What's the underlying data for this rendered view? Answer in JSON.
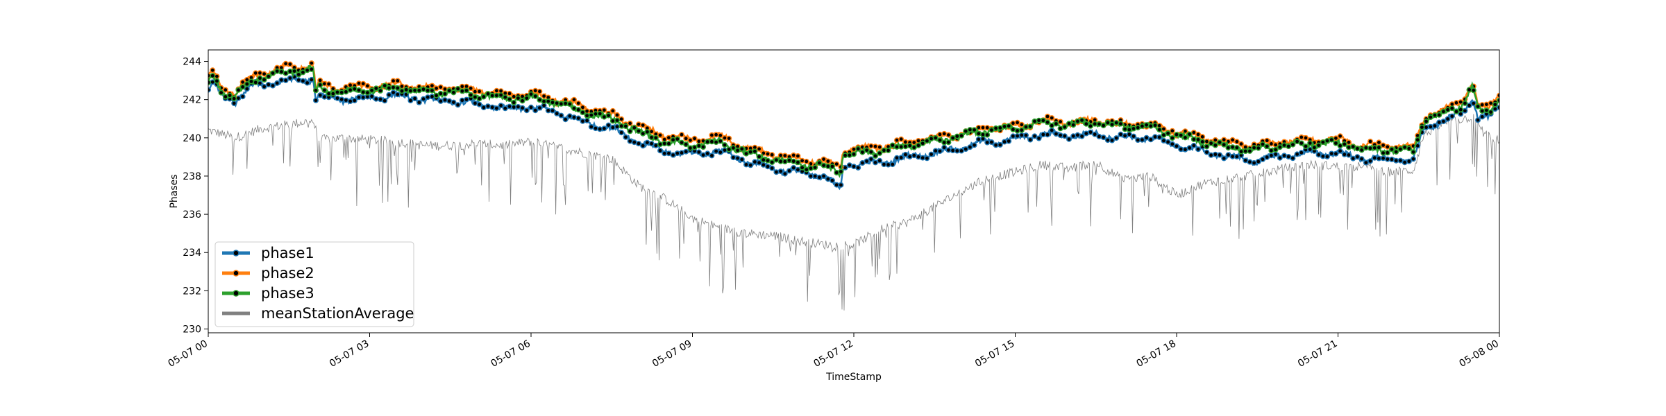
{
  "chart_data": {
    "type": "line",
    "title": "",
    "xlabel": "TimeStamp",
    "ylabel": "Phases",
    "xlim": [
      "2019-05-07 00:00",
      "2019-05-08 00:00"
    ],
    "ylim": [
      229.8,
      244.6
    ],
    "x_tick_labels": [
      "05-07 00",
      "05-07 03",
      "05-07 06",
      "05-07 09",
      "05-07 12",
      "05-07 15",
      "05-07 18",
      "05-07 21",
      "05-08 00"
    ],
    "x_tick_hours": [
      0,
      3,
      6,
      9,
      12,
      15,
      18,
      21,
      24
    ],
    "y_ticks": [
      230,
      232,
      234,
      236,
      238,
      240,
      242,
      244
    ],
    "grid": false,
    "legend_position": "lower-left",
    "legend": [
      "phase1",
      "phase2",
      "phase3",
      "meanStationAverage"
    ],
    "series": [
      {
        "name": "phase1",
        "color": "#1f77b4",
        "marker": "circle-black",
        "x_hours": [
          0,
          0.1,
          0.25,
          0.5,
          0.75,
          1,
          1.3,
          1.6,
          1.95,
          2.0,
          2.05,
          2.5,
          3,
          3.5,
          4,
          4.5,
          5,
          5.5,
          6,
          6.5,
          7,
          7.5,
          8,
          8.5,
          9,
          9.5,
          10,
          10.5,
          11,
          11.5,
          11.75,
          11.8,
          12,
          12.5,
          13,
          13.5,
          14,
          14.5,
          15,
          15.5,
          16,
          16.5,
          17,
          17.5,
          18,
          18.5,
          19,
          19.5,
          20,
          20.5,
          21,
          21.5,
          22,
          22.4,
          22.6,
          23,
          23.3,
          23.5,
          23.6,
          23.8,
          24
        ],
        "values": [
          242.5,
          242.9,
          242.2,
          241.9,
          242.6,
          242.8,
          242.9,
          243.0,
          243.1,
          241.9,
          242.2,
          242.0,
          242.1,
          242.2,
          242.0,
          241.9,
          241.8,
          241.5,
          241.6,
          241.3,
          240.8,
          240.5,
          239.8,
          239.3,
          239.1,
          239.3,
          238.8,
          238.4,
          238.2,
          237.9,
          237.3,
          238.5,
          238.6,
          238.7,
          239.0,
          239.2,
          239.5,
          239.8,
          239.9,
          240.2,
          240.1,
          240.2,
          240.0,
          240.0,
          239.6,
          239.3,
          239.0,
          238.8,
          239.1,
          239.2,
          239.2,
          238.9,
          238.9,
          238.8,
          240.5,
          240.9,
          241.3,
          242.2,
          241.1,
          241.0,
          241.6
        ]
      },
      {
        "name": "phase2",
        "color": "#ff7f0e",
        "marker": "circle-black",
        "x_hours": [
          0,
          0.1,
          0.25,
          0.5,
          0.75,
          1,
          1.3,
          1.6,
          1.95,
          2.0,
          2.05,
          2.5,
          3,
          3.5,
          4,
          4.5,
          5,
          5.5,
          6,
          6.5,
          7,
          7.5,
          8,
          8.5,
          9,
          9.5,
          10,
          10.5,
          11,
          11.5,
          11.75,
          11.8,
          12,
          12.5,
          13,
          13.5,
          14,
          14.5,
          15,
          15.5,
          16,
          16.5,
          17,
          17.5,
          18,
          18.5,
          19,
          19.5,
          20,
          20.5,
          21,
          21.5,
          22,
          22.4,
          22.6,
          23,
          23.3,
          23.5,
          23.6,
          23.8,
          24
        ],
        "values": [
          243.1,
          243.4,
          242.7,
          242.3,
          243.1,
          243.4,
          243.6,
          243.7,
          243.8,
          242.5,
          242.8,
          242.6,
          242.7,
          242.8,
          242.6,
          242.6,
          242.5,
          242.2,
          242.3,
          242.0,
          241.6,
          241.2,
          240.6,
          240.1,
          239.9,
          240.1,
          239.5,
          239.1,
          238.9,
          238.7,
          238.4,
          239.4,
          239.4,
          239.5,
          239.8,
          240.0,
          240.2,
          240.5,
          240.6,
          240.9,
          240.8,
          240.9,
          240.7,
          240.7,
          240.3,
          240.0,
          239.7,
          239.6,
          239.8,
          239.9,
          239.9,
          239.6,
          239.6,
          239.5,
          241.1,
          241.5,
          241.9,
          242.9,
          241.7,
          241.5,
          242.3
        ]
      },
      {
        "name": "phase3",
        "color": "#2ca02c",
        "marker": "circle-black",
        "x_hours": [
          0,
          0.1,
          0.25,
          0.5,
          0.75,
          1,
          1.3,
          1.6,
          1.95,
          2.0,
          2.05,
          2.5,
          3,
          3.5,
          4,
          4.5,
          5,
          5.5,
          6,
          6.5,
          7,
          7.5,
          8,
          8.5,
          9,
          9.5,
          10,
          10.5,
          11,
          11.5,
          11.75,
          11.8,
          12,
          12.5,
          13,
          13.5,
          14,
          14.5,
          15,
          15.5,
          16,
          16.5,
          17,
          17.5,
          18,
          18.5,
          19,
          19.5,
          20,
          20.5,
          21,
          21.5,
          22,
          22.4,
          22.6,
          23,
          23.3,
          23.5,
          23.6,
          23.8,
          24
        ],
        "values": [
          242.9,
          243.2,
          242.5,
          242.1,
          242.9,
          243.2,
          243.3,
          243.5,
          243.6,
          242.3,
          242.6,
          242.4,
          242.5,
          242.6,
          242.4,
          242.4,
          242.3,
          242.0,
          242.1,
          241.8,
          241.3,
          241.0,
          240.3,
          239.8,
          239.6,
          239.8,
          239.2,
          238.9,
          238.6,
          238.5,
          238.2,
          239.2,
          239.2,
          239.3,
          239.6,
          239.8,
          240.1,
          240.4,
          240.5,
          240.8,
          240.7,
          240.8,
          240.6,
          240.6,
          240.1,
          239.8,
          239.5,
          239.4,
          239.6,
          239.7,
          239.7,
          239.4,
          239.4,
          239.3,
          240.9,
          241.3,
          241.7,
          242.7,
          241.5,
          241.3,
          242.1
        ]
      },
      {
        "name": "meanStationAverage",
        "color": "#808080",
        "marker": "none",
        "x_hours": [
          0,
          0.5,
          1,
          1.5,
          1.95,
          2.05,
          2.5,
          3,
          3.5,
          4,
          4.5,
          5,
          5.5,
          6,
          6.5,
          7,
          7.5,
          8,
          8.5,
          9,
          9.5,
          10,
          10.5,
          11,
          11.5,
          12,
          12.5,
          13,
          13.5,
          14,
          14.5,
          15,
          15.5,
          16,
          16.5,
          17,
          17.5,
          18,
          18.5,
          19,
          19.5,
          20,
          20.5,
          21,
          21.5,
          22,
          22.4,
          22.6,
          23,
          23.5,
          23.7,
          24
        ],
        "values": [
          240.4,
          240.0,
          240.5,
          240.7,
          240.9,
          239.9,
          240.0,
          239.9,
          239.8,
          239.6,
          239.6,
          239.7,
          239.6,
          239.8,
          239.5,
          239.2,
          238.9,
          237.5,
          236.8,
          235.8,
          235.3,
          235.0,
          234.9,
          234.6,
          234.4,
          234.4,
          235.2,
          235.6,
          236.4,
          237.2,
          237.9,
          238.2,
          238.6,
          238.4,
          238.7,
          237.8,
          238.0,
          237.0,
          237.6,
          237.9,
          238.1,
          238.4,
          238.6,
          238.5,
          238.5,
          238.2,
          238.3,
          240.2,
          240.8,
          241.1,
          240.3,
          239.8
        ]
      }
    ]
  }
}
